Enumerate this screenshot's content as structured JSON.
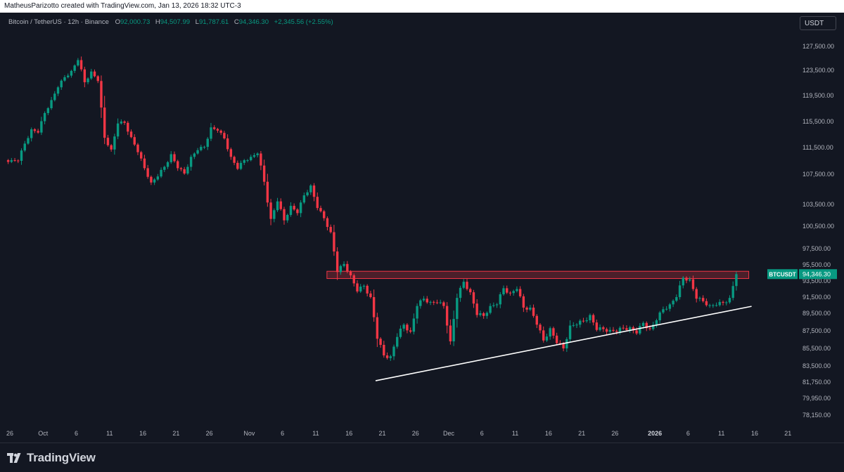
{
  "header": {
    "attribution": "MatheusParizotto created with TradingView.com, Jan 13, 2026 18:32 UTC-3"
  },
  "symbol": {
    "name": "Bitcoin / TetherUS · 12h · Binance",
    "open_label": "O",
    "open": "92,000.73",
    "high_label": "H",
    "high": "94,507.99",
    "low_label": "L",
    "low": "91,787.61",
    "close_label": "C",
    "close": "94,346.30",
    "change": "+2,345.56 (+2.55%)"
  },
  "currency_button": "USDT",
  "price_tag": {
    "ticker": "BTCUSDT",
    "price": "94,346.30"
  },
  "footer": {
    "logo_text": "TradingView"
  },
  "colors": {
    "background": "#131722",
    "up": "#089981",
    "down": "#f23645",
    "trendline": "#ffffff",
    "zone_fill": "rgba(242,54,69,0.25)",
    "zone_border": "#f23645",
    "axis_text": "#b2b5be"
  },
  "chart_data": {
    "type": "candlestick",
    "interval": "12h",
    "y_axis_ticks": [
      "127,500.00",
      "123,500.00",
      "119,500.00",
      "115,500.00",
      "111,500.00",
      "107,500.00",
      "103,500.00",
      "100,500.00",
      "97,500.00",
      "95,500.00",
      "93,500.00",
      "91,500.00",
      "89,500.00",
      "87,500.00",
      "85,500.00",
      "83,500.00",
      "81,750.00",
      "79,950.00",
      "78,150.00"
    ],
    "y_axis_values": [
      127500,
      123500,
      119500,
      115500,
      111500,
      107500,
      103500,
      100500,
      97500,
      95500,
      93500,
      91500,
      89500,
      87500,
      85500,
      83500,
      81750,
      79950,
      78150
    ],
    "x_axis_ticks": [
      "26",
      "Oct",
      "6",
      "11",
      "16",
      "21",
      "26",
      "Nov",
      "6",
      "11",
      "16",
      "21",
      "26",
      "Dec",
      "6",
      "11",
      "16",
      "21",
      "26",
      "2026",
      "6",
      "11",
      "16",
      "21"
    ],
    "x_axis_dates": [
      "2025-09-26",
      "2025-10-01",
      "2025-10-06",
      "2025-10-11",
      "2025-10-16",
      "2025-10-21",
      "2025-10-26",
      "2025-11-01",
      "2025-11-06",
      "2025-11-11",
      "2025-11-16",
      "2025-11-21",
      "2025-11-26",
      "2025-12-01",
      "2025-12-06",
      "2025-12-11",
      "2025-12-16",
      "2025-12-21",
      "2025-12-26",
      "2026-01-01",
      "2026-01-06",
      "2026-01-11",
      "2026-01-16",
      "2026-01-21"
    ],
    "resistance_zone": {
      "from_date": "2025-11-13",
      "to_date": "2026-01-13",
      "low": 93800,
      "high": 94700
    },
    "trendline": {
      "start": {
        "date": "2025-11-20",
        "price": 81900
      },
      "end": {
        "date": "2026-01-13",
        "price": 90100
      }
    },
    "last_price": 94346.3,
    "closes": [
      {
        "d": "2025-09-26",
        "c": 109600
      },
      {
        "d": "2025-09-27",
        "c": 109500
      },
      {
        "d": "2025-09-28",
        "c": 112100
      },
      {
        "d": "2025-09-29",
        "c": 114300
      },
      {
        "d": "2025-09-30",
        "c": 113800
      },
      {
        "d": "2025-10-01",
        "c": 116800
      },
      {
        "d": "2025-10-02",
        "c": 118800
      },
      {
        "d": "2025-10-03",
        "c": 120800
      },
      {
        "d": "2025-10-04",
        "c": 122400
      },
      {
        "d": "2025-10-05",
        "c": 123400
      },
      {
        "d": "2025-10-06",
        "c": 125200
      },
      {
        "d": "2025-10-07",
        "c": 121600
      },
      {
        "d": "2025-10-08",
        "c": 123300
      },
      {
        "d": "2025-10-09",
        "c": 121800
      },
      {
        "d": "2025-10-10",
        "c": 113000
      },
      {
        "d": "2025-10-11",
        "c": 111200
      },
      {
        "d": "2025-10-12",
        "c": 115200
      },
      {
        "d": "2025-10-13",
        "c": 115300
      },
      {
        "d": "2025-10-14",
        "c": 113100
      },
      {
        "d": "2025-10-15",
        "c": 110800
      },
      {
        "d": "2025-10-16",
        "c": 108400
      },
      {
        "d": "2025-10-17",
        "c": 106400
      },
      {
        "d": "2025-10-18",
        "c": 107200
      },
      {
        "d": "2025-10-19",
        "c": 108600
      },
      {
        "d": "2025-10-20",
        "c": 110500
      },
      {
        "d": "2025-10-21",
        "c": 108400
      },
      {
        "d": "2025-10-22",
        "c": 107600
      },
      {
        "d": "2025-10-23",
        "c": 110100
      },
      {
        "d": "2025-10-24",
        "c": 111100
      },
      {
        "d": "2025-10-25",
        "c": 111600
      },
      {
        "d": "2025-10-26",
        "c": 114600
      },
      {
        "d": "2025-10-27",
        "c": 114100
      },
      {
        "d": "2025-10-28",
        "c": 112900
      },
      {
        "d": "2025-10-29",
        "c": 110100
      },
      {
        "d": "2025-10-30",
        "c": 108300
      },
      {
        "d": "2025-10-31",
        "c": 109600
      },
      {
        "d": "2025-11-01",
        "c": 110100
      },
      {
        "d": "2025-11-02",
        "c": 110600
      },
      {
        "d": "2025-11-03",
        "c": 106500
      },
      {
        "d": "2025-11-04",
        "c": 101500
      },
      {
        "d": "2025-11-05",
        "c": 103900
      },
      {
        "d": "2025-11-06",
        "c": 101300
      },
      {
        "d": "2025-11-07",
        "c": 103300
      },
      {
        "d": "2025-11-08",
        "c": 102300
      },
      {
        "d": "2025-11-09",
        "c": 104700
      },
      {
        "d": "2025-11-10",
        "c": 106000
      },
      {
        "d": "2025-11-11",
        "c": 103000
      },
      {
        "d": "2025-11-12",
        "c": 101600
      },
      {
        "d": "2025-11-13",
        "c": 99700
      },
      {
        "d": "2025-11-14",
        "c": 94600
      },
      {
        "d": "2025-11-15",
        "c": 95600
      },
      {
        "d": "2025-11-16",
        "c": 94200
      },
      {
        "d": "2025-11-17",
        "c": 92200
      },
      {
        "d": "2025-11-18",
        "c": 92900
      },
      {
        "d": "2025-11-19",
        "c": 91500
      },
      {
        "d": "2025-11-20",
        "c": 86600
      },
      {
        "d": "2025-11-21",
        "c": 84700
      },
      {
        "d": "2025-11-22",
        "c": 84600
      },
      {
        "d": "2025-11-23",
        "c": 86800
      },
      {
        "d": "2025-11-24",
        "c": 88200
      },
      {
        "d": "2025-11-25",
        "c": 87400
      },
      {
        "d": "2025-11-26",
        "c": 90400
      },
      {
        "d": "2025-11-27",
        "c": 91300
      },
      {
        "d": "2025-11-28",
        "c": 90900
      },
      {
        "d": "2025-11-29",
        "c": 90800
      },
      {
        "d": "2025-11-30",
        "c": 90400
      },
      {
        "d": "2025-12-01",
        "c": 86300
      },
      {
        "d": "2025-12-02",
        "c": 91400
      },
      {
        "d": "2025-12-03",
        "c": 93400
      },
      {
        "d": "2025-12-04",
        "c": 92100
      },
      {
        "d": "2025-12-05",
        "c": 89300
      },
      {
        "d": "2025-12-06",
        "c": 89200
      },
      {
        "d": "2025-12-07",
        "c": 90400
      },
      {
        "d": "2025-12-08",
        "c": 90600
      },
      {
        "d": "2025-12-09",
        "c": 92600
      },
      {
        "d": "2025-12-10",
        "c": 92000
      },
      {
        "d": "2025-12-11",
        "c": 92500
      },
      {
        "d": "2025-12-12",
        "c": 90200
      },
      {
        "d": "2025-12-13",
        "c": 90200
      },
      {
        "d": "2025-12-14",
        "c": 88200
      },
      {
        "d": "2025-12-15",
        "c": 86400
      },
      {
        "d": "2025-12-16",
        "c": 87800
      },
      {
        "d": "2025-12-17",
        "c": 86100
      },
      {
        "d": "2025-12-18",
        "c": 85500
      },
      {
        "d": "2025-12-19",
        "c": 88100
      },
      {
        "d": "2025-12-20",
        "c": 88200
      },
      {
        "d": "2025-12-21",
        "c": 88600
      },
      {
        "d": "2025-12-22",
        "c": 89300
      },
      {
        "d": "2025-12-23",
        "c": 87600
      },
      {
        "d": "2025-12-24",
        "c": 87700
      },
      {
        "d": "2025-12-25",
        "c": 87600
      },
      {
        "d": "2025-12-26",
        "c": 87400
      },
      {
        "d": "2025-12-27",
        "c": 87800
      },
      {
        "d": "2025-12-28",
        "c": 87900
      },
      {
        "d": "2025-12-29",
        "c": 87200
      },
      {
        "d": "2025-12-30",
        "c": 88400
      },
      {
        "d": "2025-12-31",
        "c": 87700
      },
      {
        "d": "2026-01-01",
        "c": 88700
      },
      {
        "d": "2026-01-02",
        "c": 90000
      },
      {
        "d": "2026-01-03",
        "c": 90600
      },
      {
        "d": "2026-01-04",
        "c": 91500
      },
      {
        "d": "2026-01-05",
        "c": 93900
      },
      {
        "d": "2026-01-06",
        "c": 93700
      },
      {
        "d": "2026-01-07",
        "c": 91300
      },
      {
        "d": "2026-01-08",
        "c": 91000
      },
      {
        "d": "2026-01-09",
        "c": 90500
      },
      {
        "d": "2026-01-10",
        "c": 90500
      },
      {
        "d": "2026-01-11",
        "c": 90800
      },
      {
        "d": "2026-01-12",
        "c": 91400
      },
      {
        "d": "2026-01-13",
        "c": 94346
      }
    ]
  }
}
